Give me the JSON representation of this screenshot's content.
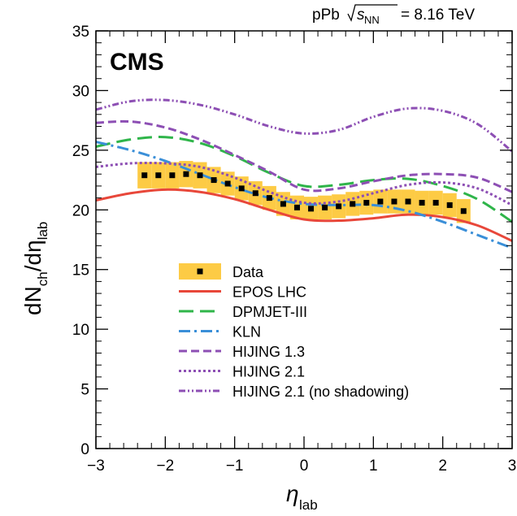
{
  "chart_data": {
    "type": "line",
    "experiment": "CMS",
    "system_label": "pPb",
    "energy_label": "= 8.16 TeV",
    "xlabel": "η",
    "xlabel_sub": "lab",
    "ylabel_parts": [
      "dN",
      "ch",
      "/dη",
      "lab"
    ],
    "xlim": [
      -3,
      3
    ],
    "ylim": [
      0,
      35
    ],
    "xticks": [
      "−3",
      "−2",
      "−1",
      "0",
      "1",
      "2",
      "3"
    ],
    "yticks": [
      "0",
      "5",
      "10",
      "15",
      "20",
      "25",
      "30",
      "35"
    ],
    "grid": false,
    "legend_position": "bottom-center",
    "data": {
      "name": "Data",
      "color": "#000000",
      "band_color": "#fdcb45",
      "x": [
        -2.3,
        -2.1,
        -1.9,
        -1.7,
        -1.5,
        -1.3,
        -1.1,
        -0.9,
        -0.7,
        -0.5,
        -0.3,
        -0.1,
        0.1,
        0.3,
        0.5,
        0.7,
        0.9,
        1.1,
        1.3,
        1.5,
        1.7,
        1.9,
        2.1,
        2.3
      ],
      "y": [
        22.9,
        22.9,
        22.9,
        23.0,
        22.9,
        22.5,
        22.2,
        21.8,
        21.4,
        21.0,
        20.5,
        20.2,
        20.1,
        20.2,
        20.3,
        20.5,
        20.6,
        20.7,
        20.7,
        20.7,
        20.6,
        20.6,
        20.4,
        19.9
      ],
      "err": [
        1.1,
        1.1,
        1.1,
        1.1,
        1.1,
        1.1,
        1.0,
        1.0,
        1.0,
        1.0,
        1.0,
        1.0,
        1.0,
        1.0,
        1.0,
        1.0,
        1.0,
        1.0,
        1.0,
        1.0,
        1.0,
        1.0,
        1.0,
        1.0
      ]
    },
    "series": [
      {
        "name": "EPOS LHC",
        "color": "#e8473a",
        "dash": "",
        "x": [
          -3,
          -2.5,
          -2,
          -1.5,
          -1,
          -0.5,
          0,
          0.5,
          1,
          1.5,
          2,
          2.5,
          3
        ],
        "y": [
          20.8,
          21.4,
          21.7,
          21.5,
          20.9,
          20.0,
          19.2,
          19.1,
          19.3,
          19.6,
          19.4,
          18.7,
          17.4
        ]
      },
      {
        "name": "DPMJET-III",
        "color": "#2fb54a",
        "dash": "18,8",
        "x": [
          -3,
          -2.5,
          -2,
          -1.5,
          -1,
          -0.5,
          0,
          0.5,
          1,
          1.5,
          2,
          2.5,
          3
        ],
        "y": [
          25.3,
          25.9,
          26.1,
          25.6,
          24.5,
          23.1,
          22.0,
          22.1,
          22.5,
          22.6,
          22.0,
          20.9,
          19.0
        ]
      },
      {
        "name": "KLN",
        "color": "#3a8fd8",
        "dash": "14,5,3,5",
        "x": [
          -3,
          -2.5,
          -2,
          -1.5,
          -1,
          -0.5,
          0,
          0.5,
          1,
          1.5,
          2,
          2.5,
          3
        ],
        "y": [
          25.7,
          25.0,
          24.1,
          23.0,
          21.9,
          21.0,
          20.5,
          20.4,
          20.4,
          19.9,
          19.0,
          17.9,
          16.8
        ]
      },
      {
        "name": "HIJING 1.3",
        "color": "#8d4fb4",
        "dash": "10,5",
        "x": [
          -3,
          -2.5,
          -2,
          -1.5,
          -1,
          -0.5,
          0,
          0.5,
          1,
          1.5,
          2,
          2.5,
          3
        ],
        "y": [
          27.3,
          27.4,
          26.9,
          25.9,
          24.6,
          23.2,
          21.7,
          21.8,
          22.4,
          22.9,
          23.0,
          22.7,
          21.5
        ]
      },
      {
        "name": "HIJING 2.1",
        "color": "#8d4fb4",
        "dash": "3,3",
        "x": [
          -3,
          -2.5,
          -2,
          -1.5,
          -1,
          -0.5,
          0,
          0.5,
          1,
          1.5,
          2,
          2.5,
          3
        ],
        "y": [
          23.6,
          23.9,
          23.9,
          23.6,
          22.7,
          21.5,
          20.6,
          20.7,
          21.4,
          22.1,
          22.3,
          21.8,
          20.4
        ]
      },
      {
        "name": "HIJING 2.1 (no shadowing)",
        "color": "#8d4fb4",
        "dash": "8,3,2,3,2,3",
        "x": [
          -3,
          -2.5,
          -2,
          -1.5,
          -1,
          -0.5,
          0,
          0.5,
          1,
          1.5,
          2,
          2.5,
          3
        ],
        "y": [
          28.4,
          29.1,
          29.2,
          28.8,
          28.0,
          27.0,
          26.4,
          26.7,
          27.8,
          28.5,
          28.3,
          27.2,
          24.9
        ]
      }
    ],
    "legend": [
      {
        "key": "data",
        "label": "Data"
      },
      {
        "key": "s0",
        "label": "EPOS LHC"
      },
      {
        "key": "s1",
        "label": "DPMJET-III"
      },
      {
        "key": "s2",
        "label": "KLN"
      },
      {
        "key": "s3",
        "label": "HIJING 1.3"
      },
      {
        "key": "s4",
        "label": "HIJING 2.1"
      },
      {
        "key": "s5",
        "label": "HIJING 2.1 (no shadowing)"
      }
    ]
  }
}
